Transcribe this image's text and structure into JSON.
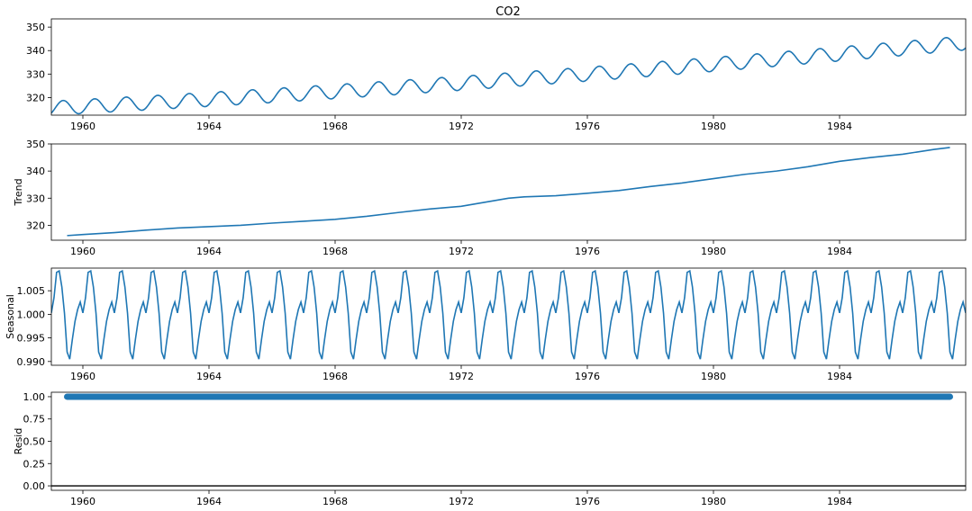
{
  "figure": {
    "title": "CO2"
  },
  "colors": {
    "line": "#1f77b4",
    "frame": "#000000",
    "zero_line": "#000000"
  },
  "chart_data": [
    {
      "type": "line",
      "name": "observed",
      "title": "CO2",
      "ylabel": "",
      "xlim": [
        1959.0,
        1988.0
      ],
      "ylim": [
        312.5,
        353.5
      ],
      "xticks": [
        1960,
        1964,
        1968,
        1972,
        1976,
        1980,
        1984
      ],
      "yticks": [
        320,
        330,
        340,
        350
      ],
      "xtick_labels": [
        "1960",
        "1964",
        "1968",
        "1972",
        "1976",
        "1980",
        "1984"
      ],
      "ytick_labels": [
        "320",
        "330",
        "340",
        "350"
      ],
      "model": {
        "start": 1959.0,
        "end": 1988.0,
        "base": 315.5,
        "growth": 0.7,
        "accel": 0.0089,
        "amplitude": 3.0,
        "peak_month": 4.5
      },
      "grid": false,
      "legend": "none"
    },
    {
      "type": "line",
      "name": "trend",
      "title": "",
      "ylabel": "Trend",
      "xlim": [
        1959.0,
        1988.0
      ],
      "ylim": [
        314.5,
        350.0
      ],
      "xticks": [
        1960,
        1964,
        1968,
        1972,
        1976,
        1980,
        1984
      ],
      "yticks": [
        320,
        330,
        340,
        350
      ],
      "xtick_labels": [
        "1960",
        "1964",
        "1968",
        "1972",
        "1976",
        "1980",
        "1984"
      ],
      "ytick_labels": [
        "320",
        "330",
        "340",
        "350"
      ],
      "points": [
        [
          1959.5,
          316.2
        ],
        [
          1960,
          316.6
        ],
        [
          1961,
          317.3
        ],
        [
          1962,
          318.2
        ],
        [
          1963,
          319.0
        ],
        [
          1964,
          319.5
        ],
        [
          1965,
          320.0
        ],
        [
          1966,
          320.8
        ],
        [
          1967,
          321.5
        ],
        [
          1968,
          322.2
        ],
        [
          1969,
          323.3
        ],
        [
          1970,
          324.7
        ],
        [
          1971,
          326.0
        ],
        [
          1972,
          327.0
        ],
        [
          1973,
          329.0
        ],
        [
          1973.5,
          330.0
        ],
        [
          1974,
          330.5
        ],
        [
          1975,
          330.9
        ],
        [
          1976,
          331.8
        ],
        [
          1977,
          332.8
        ],
        [
          1978,
          334.3
        ],
        [
          1979,
          335.6
        ],
        [
          1980,
          337.2
        ],
        [
          1981,
          338.8
        ],
        [
          1982,
          340.0
        ],
        [
          1983,
          341.6
        ],
        [
          1984,
          343.6
        ],
        [
          1985,
          345.0
        ],
        [
          1986,
          346.2
        ],
        [
          1987,
          348.0
        ],
        [
          1987.5,
          348.7
        ]
      ],
      "grid": false,
      "legend": "none"
    },
    {
      "type": "line",
      "name": "seasonal",
      "title": "",
      "ylabel": "Seasonal",
      "xlim": [
        1959.0,
        1988.0
      ],
      "ylim": [
        0.9892,
        1.0098
      ],
      "xticks": [
        1960,
        1964,
        1968,
        1972,
        1976,
        1980,
        1984
      ],
      "yticks": [
        0.99,
        0.995,
        1.0,
        1.005
      ],
      "xtick_labels": [
        "1960",
        "1964",
        "1968",
        "1972",
        "1976",
        "1980",
        "1984"
      ],
      "ytick_labels": [
        "0.990",
        "0.995",
        "1.000",
        "1.005"
      ],
      "monthly_pattern": [
        1.0003,
        1.0035,
        1.0089,
        1.0092,
        1.0058,
        1.0002,
        0.992,
        0.9905,
        0.9947,
        0.9985,
        1.001,
        1.0026
      ],
      "period_start": 1959.0,
      "period_end": 1988.0,
      "grid": false,
      "legend": "none"
    },
    {
      "type": "scatter",
      "name": "resid",
      "title": "",
      "ylabel": "Resid",
      "xlim": [
        1959.0,
        1988.0
      ],
      "ylim": [
        -0.05,
        1.05
      ],
      "xticks": [
        1960,
        1964,
        1968,
        1972,
        1976,
        1980,
        1984
      ],
      "yticks": [
        0.0,
        0.25,
        0.5,
        0.75,
        1.0
      ],
      "xtick_labels": [
        "1960",
        "1964",
        "1968",
        "1972",
        "1976",
        "1980",
        "1984"
      ],
      "ytick_labels": [
        "0.00",
        "0.25",
        "0.50",
        "0.75",
        "1.00"
      ],
      "value": 1.0,
      "x_start": 1959.5,
      "x_end": 1987.5,
      "zero_line": 0.0,
      "grid": false,
      "legend": "none"
    }
  ]
}
